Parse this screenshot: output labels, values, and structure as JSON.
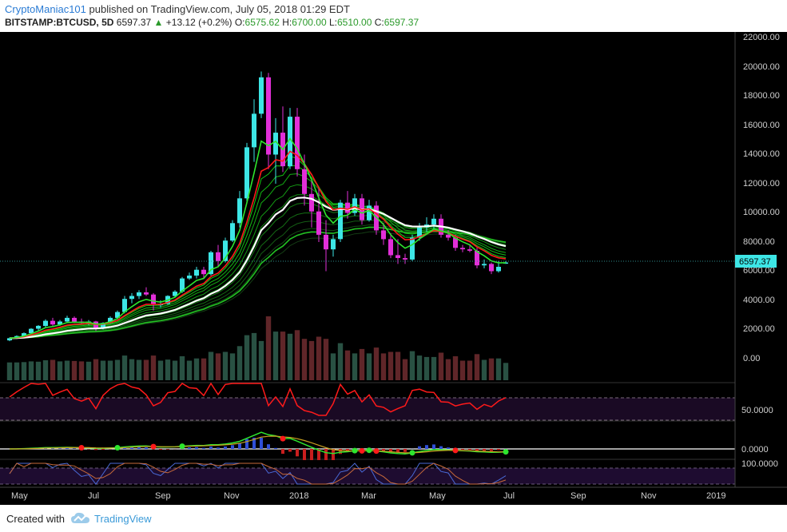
{
  "header": {
    "author": "CryptoManiac101",
    "published_text": "published on TradingView.com, July 05, 2018 01:29 EDT",
    "symbol": "BITSTAMP:BTCUSD, 5D",
    "last_price": "6597.37",
    "change": "+13.12 (+0.2%)",
    "o_label": "O:",
    "o_value": "6575.62",
    "h_label": "H:",
    "h_value": "6700.00",
    "l_label": "L:",
    "l_value": "6510.00",
    "c_label": "C:",
    "c_value": "6597.37"
  },
  "price_axis": {
    "labels": [
      "22000.00",
      "20000.00",
      "18000.00",
      "16000.00",
      "14000.00",
      "12000.00",
      "10000.00",
      "8000.00",
      "6000.00",
      "4000.00",
      "2000.00",
      "0.00"
    ],
    "current_price_tag": "6597.37"
  },
  "rsi_panel": {
    "axis_label": "50.0000"
  },
  "macd_panel": {
    "axis_label": "0.0000"
  },
  "stoch_panel": {
    "axis_label": "100.0000"
  },
  "time_axis": {
    "labels": [
      "May",
      "Jul",
      "Sep",
      "Nov",
      "2018",
      "Mar",
      "May",
      "Jul",
      "Sep",
      "Nov",
      "2019"
    ]
  },
  "footer": {
    "created_with": "Created with",
    "brand": "TradingView"
  },
  "colors": {
    "bull": "#3de6e6",
    "bear": "#e22fd8",
    "ema_fast": "#ff1a1a",
    "ema_mid": "#2ee62e",
    "ema_slow": "#ffffff",
    "accent": "#2a7bd4"
  },
  "chart_data": {
    "type": "candlestick",
    "symbol": "BITSTAMP:BTCUSD",
    "interval": "5D",
    "ylim": [
      0,
      22000
    ],
    "x_ticks": [
      "May",
      "Jul",
      "Sep",
      "Nov",
      "2018",
      "Mar",
      "May",
      "Jul",
      "Sep",
      "Nov",
      "2019"
    ],
    "candles": [
      {
        "o": 1250,
        "h": 1450,
        "l": 1200,
        "c": 1400
      },
      {
        "o": 1400,
        "h": 1600,
        "l": 1350,
        "c": 1550
      },
      {
        "o": 1550,
        "h": 1800,
        "l": 1500,
        "c": 1750
      },
      {
        "o": 1750,
        "h": 2100,
        "l": 1700,
        "c": 2050
      },
      {
        "o": 2050,
        "h": 2300,
        "l": 1950,
        "c": 2250
      },
      {
        "o": 2250,
        "h": 2700,
        "l": 2150,
        "c": 2600
      },
      {
        "o": 2600,
        "h": 2800,
        "l": 2200,
        "c": 2350
      },
      {
        "o": 2350,
        "h": 2650,
        "l": 2250,
        "c": 2550
      },
      {
        "o": 2550,
        "h": 2950,
        "l": 2450,
        "c": 2800
      },
      {
        "o": 2800,
        "h": 2900,
        "l": 2450,
        "c": 2550
      },
      {
        "o": 2550,
        "h": 2750,
        "l": 2350,
        "c": 2450
      },
      {
        "o": 2450,
        "h": 2650,
        "l": 2300,
        "c": 2550
      },
      {
        "o": 2550,
        "h": 2600,
        "l": 1900,
        "c": 2100
      },
      {
        "o": 2100,
        "h": 2500,
        "l": 2000,
        "c": 2450
      },
      {
        "o": 2450,
        "h": 2900,
        "l": 2400,
        "c": 2800
      },
      {
        "o": 2800,
        "h": 3300,
        "l": 2700,
        "c": 3200
      },
      {
        "o": 3200,
        "h": 4300,
        "l": 3100,
        "c": 4100
      },
      {
        "o": 4100,
        "h": 4500,
        "l": 3800,
        "c": 4300
      },
      {
        "o": 4300,
        "h": 4700,
        "l": 4100,
        "c": 4550
      },
      {
        "o": 4550,
        "h": 4900,
        "l": 4300,
        "c": 4400
      },
      {
        "o": 4400,
        "h": 4500,
        "l": 3300,
        "c": 3700
      },
      {
        "o": 3700,
        "h": 4000,
        "l": 3500,
        "c": 3750
      },
      {
        "o": 3750,
        "h": 4350,
        "l": 3700,
        "c": 4300
      },
      {
        "o": 4300,
        "h": 4700,
        "l": 4200,
        "c": 4600
      },
      {
        "o": 4600,
        "h": 5600,
        "l": 4500,
        "c": 5500
      },
      {
        "o": 5500,
        "h": 5900,
        "l": 5400,
        "c": 5700
      },
      {
        "o": 5700,
        "h": 6300,
        "l": 5500,
        "c": 6100
      },
      {
        "o": 6100,
        "h": 6300,
        "l": 5500,
        "c": 5800
      },
      {
        "o": 5800,
        "h": 7400,
        "l": 5700,
        "c": 7300
      },
      {
        "o": 7300,
        "h": 7800,
        "l": 6300,
        "c": 6700
      },
      {
        "o": 6700,
        "h": 8300,
        "l": 6600,
        "c": 8100
      },
      {
        "o": 8100,
        "h": 9500,
        "l": 8000,
        "c": 9300
      },
      {
        "o": 9300,
        "h": 11500,
        "l": 9000,
        "c": 11000
      },
      {
        "o": 11000,
        "h": 14800,
        "l": 10800,
        "c": 14500
      },
      {
        "o": 14500,
        "h": 17800,
        "l": 13500,
        "c": 16800
      },
      {
        "o": 16800,
        "h": 19700,
        "l": 16500,
        "c": 19300
      },
      {
        "o": 19300,
        "h": 19600,
        "l": 13000,
        "c": 14000
      },
      {
        "o": 14000,
        "h": 16500,
        "l": 12000,
        "c": 15500
      },
      {
        "o": 15500,
        "h": 17300,
        "l": 12800,
        "c": 13200
      },
      {
        "o": 13200,
        "h": 17200,
        "l": 13000,
        "c": 16600
      },
      {
        "o": 16600,
        "h": 17200,
        "l": 12500,
        "c": 13000
      },
      {
        "o": 13000,
        "h": 14000,
        "l": 10500,
        "c": 11300
      },
      {
        "o": 11300,
        "h": 12200,
        "l": 9000,
        "c": 10100
      },
      {
        "o": 10100,
        "h": 11800,
        "l": 8000,
        "c": 8500
      },
      {
        "o": 8500,
        "h": 9500,
        "l": 6000,
        "c": 7500
      },
      {
        "o": 7500,
        "h": 8500,
        "l": 7000,
        "c": 8200
      },
      {
        "o": 8200,
        "h": 10900,
        "l": 8000,
        "c": 10700
      },
      {
        "o": 10700,
        "h": 11500,
        "l": 9600,
        "c": 10000
      },
      {
        "o": 10000,
        "h": 11300,
        "l": 9800,
        "c": 11000
      },
      {
        "o": 11000,
        "h": 11300,
        "l": 9200,
        "c": 9500
      },
      {
        "o": 9500,
        "h": 10900,
        "l": 9400,
        "c": 10500
      },
      {
        "o": 10500,
        "h": 10800,
        "l": 8500,
        "c": 8800
      },
      {
        "o": 8800,
        "h": 9300,
        "l": 7800,
        "c": 8200
      },
      {
        "o": 8200,
        "h": 8600,
        "l": 6900,
        "c": 7100
      },
      {
        "o": 7100,
        "h": 8200,
        "l": 6500,
        "c": 6900
      },
      {
        "o": 6900,
        "h": 7200,
        "l": 6500,
        "c": 6800
      },
      {
        "o": 6800,
        "h": 8500,
        "l": 6700,
        "c": 8300
      },
      {
        "o": 8300,
        "h": 9300,
        "l": 8100,
        "c": 9000
      },
      {
        "o": 9000,
        "h": 9700,
        "l": 8700,
        "c": 9200
      },
      {
        "o": 9200,
        "h": 9900,
        "l": 8900,
        "c": 9600
      },
      {
        "o": 9600,
        "h": 9900,
        "l": 8300,
        "c": 8500
      },
      {
        "o": 8500,
        "h": 8800,
        "l": 8100,
        "c": 8300
      },
      {
        "o": 8300,
        "h": 8500,
        "l": 7400,
        "c": 7600
      },
      {
        "o": 7600,
        "h": 7800,
        "l": 7300,
        "c": 7500
      },
      {
        "o": 7500,
        "h": 7800,
        "l": 7300,
        "c": 7400
      },
      {
        "o": 7400,
        "h": 7600,
        "l": 6200,
        "c": 6400
      },
      {
        "o": 6400,
        "h": 6800,
        "l": 6200,
        "c": 6500
      },
      {
        "o": 6500,
        "h": 6600,
        "l": 5800,
        "c": 6000
      },
      {
        "o": 6000,
        "h": 6700,
        "l": 5900,
        "c": 6300
      },
      {
        "o": 6575.62,
        "h": 6700,
        "l": 6510,
        "c": 6597.37
      }
    ]
  }
}
